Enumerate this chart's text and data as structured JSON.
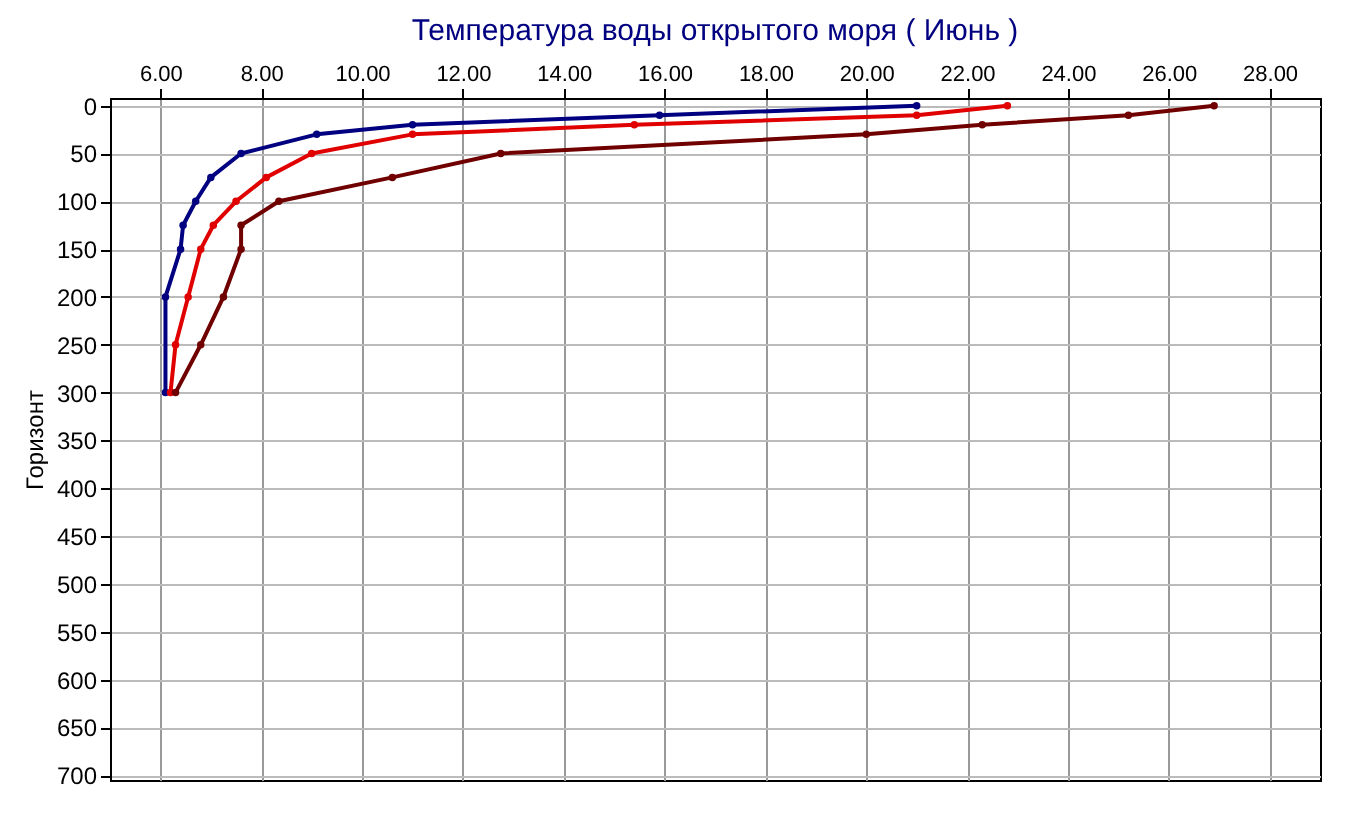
{
  "chart_data": {
    "type": "line",
    "title": "Температура воды открытого моря     ( Июнь )",
    "ylabel": "Горизонт",
    "xlim": [
      5,
      29
    ],
    "xticks": [
      {
        "value": 6,
        "label": "6.00"
      },
      {
        "value": 8,
        "label": "8.00"
      },
      {
        "value": 10,
        "label": "10.00"
      },
      {
        "value": 12,
        "label": "12.00"
      },
      {
        "value": 14,
        "label": "14.00"
      },
      {
        "value": 16,
        "label": "16.00"
      },
      {
        "value": 18,
        "label": "18.00"
      },
      {
        "value": 20,
        "label": "20.00"
      },
      {
        "value": 22,
        "label": "22.00"
      },
      {
        "value": 24,
        "label": "24.00"
      },
      {
        "value": 26,
        "label": "26.00"
      },
      {
        "value": 28,
        "label": "28.00"
      }
    ],
    "ylim": [
      705,
      -8
    ],
    "yticks": [
      0,
      50,
      100,
      150,
      200,
      250,
      300,
      350,
      400,
      450,
      500,
      550,
      600,
      650,
      700
    ],
    "grid": true,
    "marker": "circle",
    "line_style": "solid",
    "series": [
      {
        "color": "#000080",
        "x": [
          21.0,
          15.9,
          11.0,
          9.1,
          7.6,
          7.0,
          6.7,
          6.45,
          6.4,
          6.1,
          6.1
        ],
        "values": [
          0,
          10,
          20,
          30,
          50,
          75,
          100,
          125,
          150,
          200,
          300
        ]
      },
      {
        "color": "#e00000",
        "x": [
          22.8,
          21.0,
          15.4,
          11.0,
          9.0,
          8.1,
          7.5,
          7.05,
          6.8,
          6.55,
          6.3,
          6.2
        ],
        "values": [
          0,
          10,
          20,
          30,
          50,
          75,
          100,
          125,
          150,
          200,
          250,
          300
        ]
      },
      {
        "color": "#700000",
        "x": [
          26.9,
          25.2,
          22.3,
          20.0,
          12.75,
          10.6,
          8.35,
          7.6,
          7.6,
          7.25,
          6.8,
          6.3
        ],
        "values": [
          0,
          10,
          20,
          30,
          50,
          75,
          100,
          125,
          150,
          200,
          250,
          300
        ]
      }
    ]
  }
}
